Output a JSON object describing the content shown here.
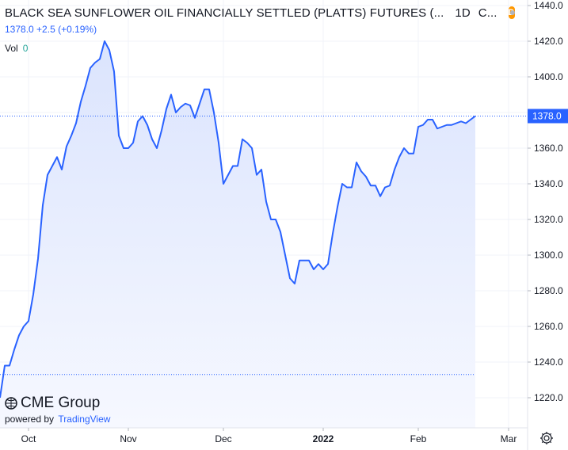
{
  "header": {
    "title": "BLACK SEA SUNFLOWER OIL FINANCIALLY SETTLED (PLATTS) FUTURES (...",
    "interval": "1D",
    "exchange": "C...",
    "badge_letter": "D",
    "price": "1378.0",
    "change": "+2.5 (+0.19%)",
    "vol_label": "Vol",
    "vol_value": "0"
  },
  "logo": {
    "name": "CME Group",
    "powered_by": "powered by",
    "tradingview": "TradingView"
  },
  "current_price_label": "1378.0",
  "colors": {
    "line": "#2962ff",
    "area_top": "#dbe4fd",
    "area_bottom": "#f6f8ff",
    "price_label_bg": "#2962ff",
    "grid": "#f0f3fa",
    "axis_text": "#131722",
    "badge_orange": "#ff9800"
  },
  "chart_data": {
    "type": "area",
    "y_axis_ticks": [
      "1220.0",
      "1240.0",
      "1260.0",
      "1280.0",
      "1300.0",
      "1320.0",
      "1340.0",
      "1360.0",
      "1380.0",
      "1400.0",
      "1420.0",
      "1440.0"
    ],
    "ylim": [
      1210,
      1440
    ],
    "x_axis_labels": [
      {
        "label": "Oct",
        "index": 6
      },
      {
        "label": "Nov",
        "index": 27
      },
      {
        "label": "Dec",
        "index": 47
      },
      {
        "label": "2022",
        "index": 68
      },
      {
        "label": "Feb",
        "index": 88
      },
      {
        "label": "Mar",
        "index": 107
      }
    ],
    "grid": true,
    "last_value": 1378.0,
    "dotted_reference": 1233,
    "series": [
      {
        "values": [
          1220,
          1238,
          1238,
          1247,
          1255,
          1260,
          1263,
          1278,
          1298,
          1328,
          1345,
          1350,
          1355,
          1348,
          1361,
          1367,
          1374,
          1386,
          1395,
          1405,
          1408,
          1410,
          1420,
          1415,
          1403,
          1367,
          1360,
          1360,
          1363,
          1375,
          1378,
          1373,
          1365,
          1360,
          1370,
          1382,
          1390,
          1380,
          1383,
          1385,
          1384,
          1377,
          1385,
          1393,
          1393,
          1380,
          1363,
          1340,
          1345,
          1350,
          1350,
          1365,
          1363,
          1360,
          1345,
          1348,
          1330,
          1320,
          1320,
          1313,
          1300,
          1287,
          1284,
          1297,
          1297,
          1297,
          1292,
          1295,
          1292,
          1295,
          1312,
          1327,
          1340,
          1338,
          1338,
          1352,
          1347,
          1344,
          1339,
          1339,
          1333,
          1338,
          1339,
          1348,
          1355,
          1360,
          1357,
          1357,
          1372,
          1373,
          1376,
          1376,
          1371,
          1372,
          1373,
          1373,
          1374,
          1375,
          1374,
          1376,
          1378
        ]
      }
    ]
  }
}
